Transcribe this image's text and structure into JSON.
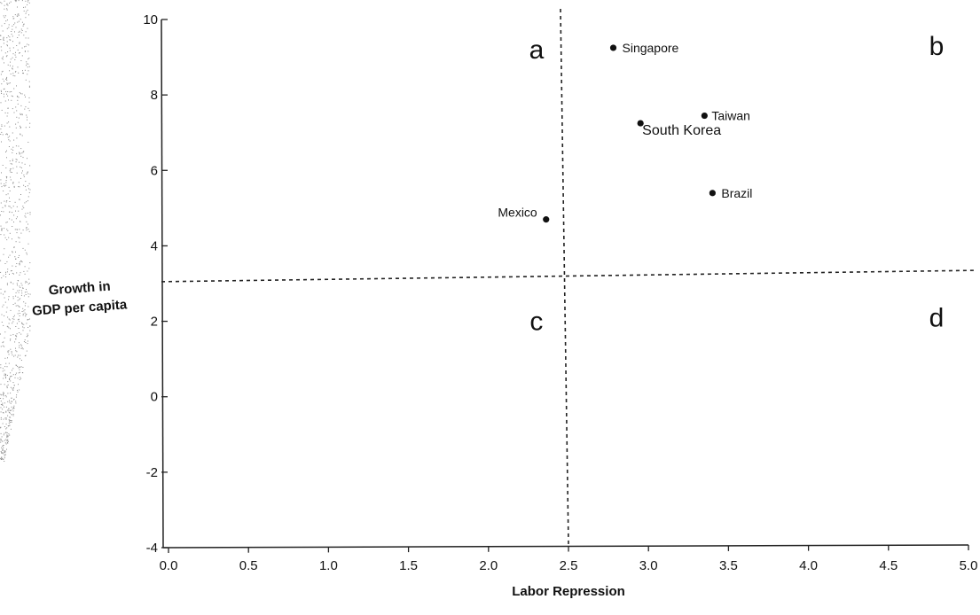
{
  "chart_data": {
    "type": "scatter",
    "xlabel": "Labor Repression",
    "ylabel_lines": [
      "Growth in",
      "GDP per capita"
    ],
    "xlim": [
      0.0,
      5.0
    ],
    "ylim": [
      -4,
      10
    ],
    "x_ticks": [
      "0.0",
      "0.5",
      "1.0",
      "1.5",
      "2.0",
      "2.5",
      "3.0",
      "3.5",
      "4.0",
      "4.5",
      "5.0"
    ],
    "y_ticks": [
      "10",
      "8",
      "6",
      "4",
      "2",
      "0",
      "-2",
      "-4"
    ],
    "grid": false,
    "points": [
      {
        "label": "Singapore",
        "x": 2.78,
        "y": 9.25
      },
      {
        "label": "Taiwan",
        "x": 3.35,
        "y": 7.45
      },
      {
        "label": "South Korea",
        "x": 2.95,
        "y": 7.25
      },
      {
        "label": "Brazil",
        "x": 3.4,
        "y": 5.4
      },
      {
        "label": "Mexico",
        "x": 2.36,
        "y": 4.7
      }
    ],
    "quadrant_dividers": {
      "vertical": {
        "x_top": 2.45,
        "x_bottom": 2.5
      },
      "horizontal": {
        "y_left": 3.05,
        "y_right": 3.35
      }
    },
    "quadrant_labels": [
      {
        "text": "a",
        "x": 2.3,
        "y": 9.2
      },
      {
        "text": "b",
        "x": 4.8,
        "y": 9.3
      },
      {
        "text": "c",
        "x": 2.3,
        "y": 2.0
      },
      {
        "text": "d",
        "x": 4.8,
        "y": 2.1
      }
    ]
  }
}
